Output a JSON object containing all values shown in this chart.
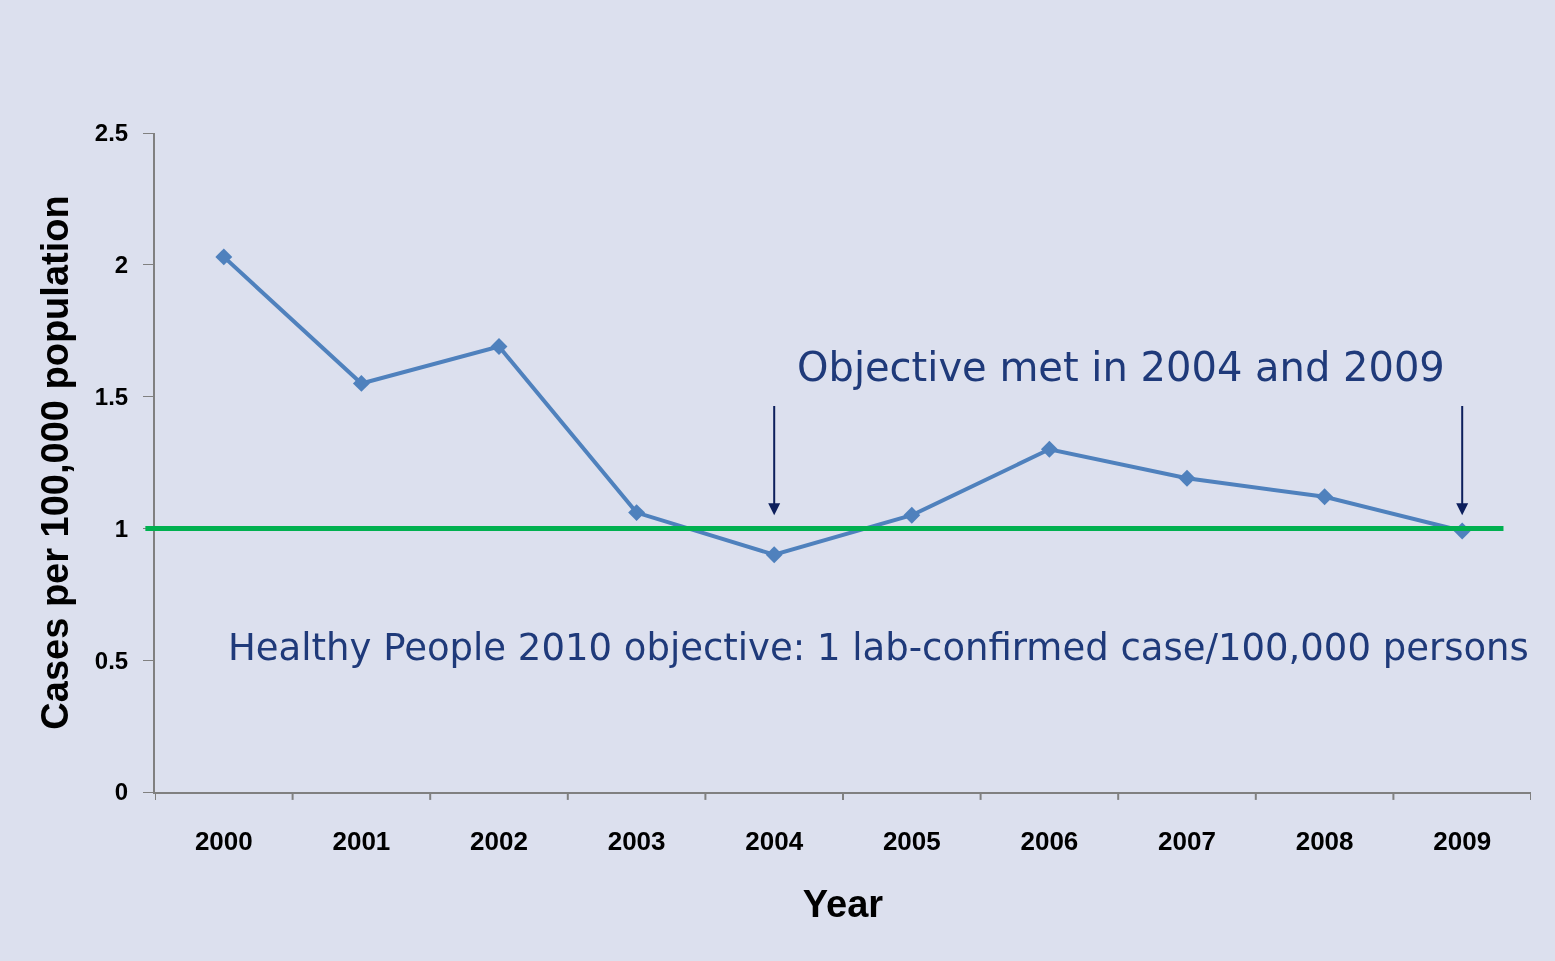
{
  "chart_data": {
    "type": "line",
    "xlabel": "Year",
    "ylabel": "Cases per 100,000 population",
    "categories": [
      "2000",
      "2001",
      "2002",
      "2003",
      "2004",
      "2005",
      "2006",
      "2007",
      "2008",
      "2009"
    ],
    "series": [
      {
        "color": "#4f81bd",
        "values": [
          2.03,
          1.55,
          1.69,
          1.06,
          0.9,
          1.05,
          1.3,
          1.19,
          1.12,
          0.99
        ]
      }
    ],
    "ylim": [
      0,
      2.5
    ],
    "yticks": [
      0,
      0.5,
      1,
      1.5,
      2,
      2.5
    ],
    "ref_lines": [
      {
        "axis": "y",
        "value": 1,
        "label": "Healthy People 2010 objective: 1 lab-confirmed case/100,000 persons",
        "color": "#00b050",
        "line_style": "solid"
      }
    ],
    "annotations": [
      "Objective met in 2004 and 2009"
    ],
    "marker": "diamond",
    "line_style": "solid",
    "grid": false
  }
}
